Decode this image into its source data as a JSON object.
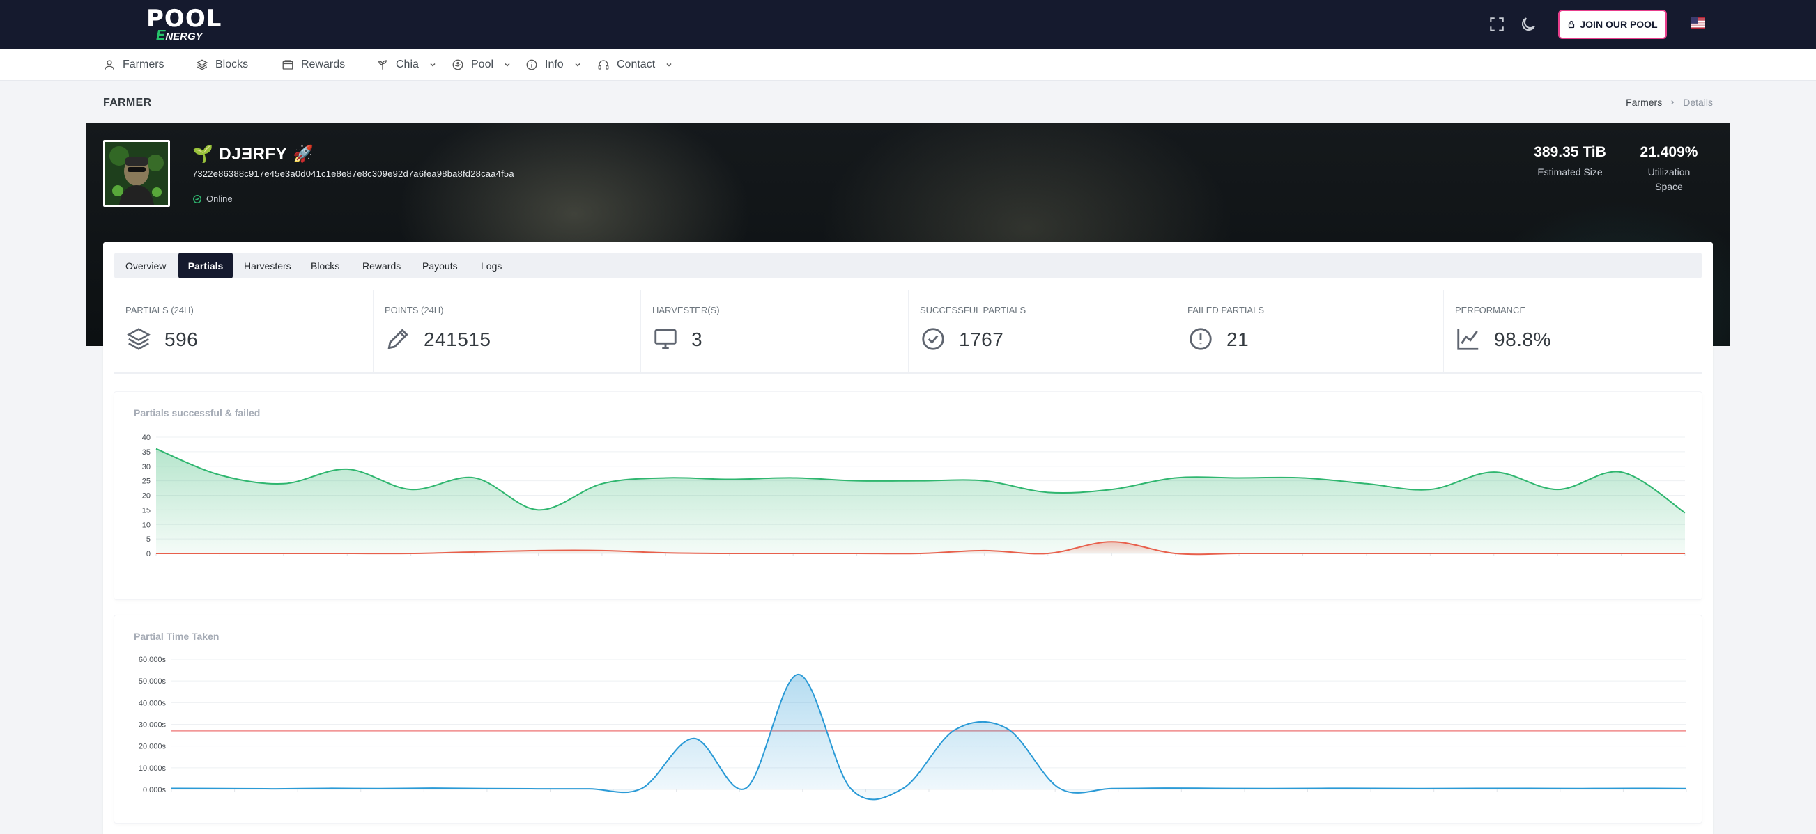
{
  "brand": {
    "logo_top": "POOL",
    "logo_bottom": "NERGY",
    "logo_bottom_accent": "E"
  },
  "topbar": {
    "join_label": "JOIN OUR POOL"
  },
  "nav": [
    {
      "label": "Farmers",
      "icon": "user-icon"
    },
    {
      "label": "Blocks",
      "icon": "layers-icon"
    },
    {
      "label": "Rewards",
      "icon": "wallet-icon"
    },
    {
      "label": "Chia",
      "icon": "plant-icon",
      "dropdown": true
    },
    {
      "label": "Pool",
      "icon": "pool-icon",
      "dropdown": true
    },
    {
      "label": "Info",
      "icon": "info-icon",
      "dropdown": true
    },
    {
      "label": "Contact",
      "icon": "headset-icon",
      "dropdown": true
    }
  ],
  "page": {
    "title": "FARMER",
    "breadcrumb": [
      "Farmers",
      "Details"
    ]
  },
  "farmer": {
    "name": "DJƎRFY",
    "prefix_emoji": "🌱",
    "suffix_emoji": "🚀",
    "launcher_id": "7322e86388c917e45e3a0d041c1e8e87e8c309e92d7a6fea98ba8fd28caa4f5a",
    "status": "Online",
    "estimated_size": "389.35 TiB",
    "estimated_size_label": "Estimated Size",
    "utilization": "21.409%",
    "utilization_label_1": "Utilization",
    "utilization_label_2": "Space"
  },
  "tabs": [
    "Overview",
    "Partials",
    "Harvesters",
    "Blocks",
    "Rewards",
    "Payouts",
    "Logs"
  ],
  "active_tab": "Partials",
  "stats": [
    {
      "label": "PARTIALS (24H)",
      "value": "596",
      "icon": "layers-icon"
    },
    {
      "label": "POINTS (24H)",
      "value": "241515",
      "icon": "pencil-icon"
    },
    {
      "label": "HARVESTER(S)",
      "value": "3",
      "icon": "monitor-icon"
    },
    {
      "label": "SUCCESSFUL PARTIALS",
      "value": "1767",
      "icon": "check-circle-icon"
    },
    {
      "label": "FAILED PARTIALS",
      "value": "21",
      "icon": "alert-circle-icon"
    },
    {
      "label": "PERFORMANCE",
      "value": "98.8%",
      "icon": "trend-chart-icon"
    }
  ],
  "colors": {
    "dark": "#151a2e",
    "success": "#2fb66f",
    "failed": "#e8604c",
    "time": "#2a9ad6",
    "threshold": "#f08a8a",
    "accent_pink": "#e83e8c"
  },
  "chart_data": [
    {
      "type": "area",
      "title": "Partials successful & failed",
      "ylim": [
        0,
        40
      ],
      "yticks": [
        "40",
        "35",
        "30",
        "25",
        "20",
        "15",
        "10",
        "5",
        "0"
      ],
      "x_count": 24,
      "series": [
        {
          "values": [
            36,
            27,
            24,
            29,
            22,
            26,
            15,
            24,
            26,
            25.5,
            26,
            25,
            25,
            25,
            21,
            22,
            26,
            26,
            26,
            24,
            22,
            28,
            22,
            28,
            14
          ]
        },
        {
          "values": [
            0,
            0,
            0,
            0,
            0,
            0.5,
            1,
            1,
            0.2,
            0,
            0,
            0,
            0,
            1,
            0,
            4,
            0,
            0,
            0,
            0,
            0,
            0,
            0,
            0,
            0
          ]
        }
      ]
    },
    {
      "type": "area",
      "title": "Partial Time Taken",
      "ylim": [
        0,
        60
      ],
      "yticks": [
        "60.000s",
        "50.000s",
        "40.000s",
        "30.000s",
        "20.000s",
        "10.000s",
        "0.000s"
      ],
      "threshold": 27,
      "series": [
        {
          "values": [
            0.5,
            0.4,
            0.3,
            0.5,
            0.4,
            0.6,
            0.4,
            0.3,
            0.3,
            0.4,
            23.5,
            0.6,
            53,
            0.5,
            0.4,
            27.5,
            28,
            0.5,
            0.4,
            0.6,
            0.5,
            0.4,
            0.5,
            0.5,
            0.4,
            0.5,
            0.5,
            0.4,
            0.5,
            0.4
          ]
        }
      ]
    }
  ]
}
